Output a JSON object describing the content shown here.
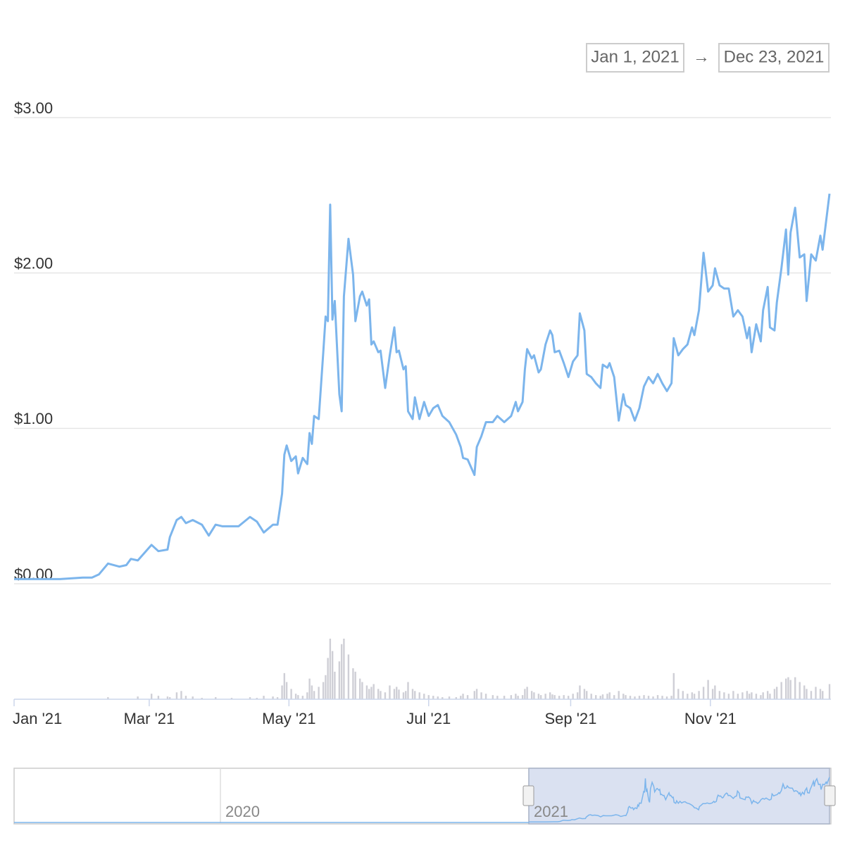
{
  "range_selector": {
    "from": "Jan 1, 2021",
    "arrow": "→",
    "to": "Dec 23, 2021"
  },
  "chart_data": {
    "type": "line",
    "color": "#7cb5ec",
    "grid": true,
    "xlim": [
      "2021-01-01",
      "2021-12-23"
    ],
    "xticks": [
      {
        "value": "2021-01-01",
        "label": "Jan '21"
      },
      {
        "value": "2021-03-01",
        "label": "Mar '21"
      },
      {
        "value": "2021-05-01",
        "label": "May '21"
      },
      {
        "value": "2021-07-01",
        "label": "Jul '21"
      },
      {
        "value": "2021-09-01",
        "label": "Sep '21"
      },
      {
        "value": "2021-11-01",
        "label": "Nov '21"
      }
    ],
    "ylim": [
      0,
      3
    ],
    "yticks": [
      {
        "value": 0,
        "label": "$0.00"
      },
      {
        "value": 1,
        "label": "$1.00"
      },
      {
        "value": 2,
        "label": "$2.00"
      },
      {
        "value": 3,
        "label": "$3.00"
      }
    ],
    "x": [
      "2021-01-01",
      "2021-01-11",
      "2021-01-21",
      "2021-01-31",
      "2021-02-04",
      "2021-02-07",
      "2021-02-11",
      "2021-02-16",
      "2021-02-19",
      "2021-02-21",
      "2021-02-24",
      "2021-02-27",
      "2021-03-02",
      "2021-03-05",
      "2021-03-09",
      "2021-03-10",
      "2021-03-13",
      "2021-03-15",
      "2021-03-17",
      "2021-03-20",
      "2021-03-24",
      "2021-03-27",
      "2021-03-30",
      "2021-04-02",
      "2021-04-06",
      "2021-04-09",
      "2021-04-14",
      "2021-04-17",
      "2021-04-20",
      "2021-04-24",
      "2021-04-26",
      "2021-04-28",
      "2021-04-29",
      "2021-04-30",
      "2021-05-02",
      "2021-05-04",
      "2021-05-05",
      "2021-05-07",
      "2021-05-09",
      "2021-05-10",
      "2021-05-11",
      "2021-05-12",
      "2021-05-14",
      "2021-05-16",
      "2021-05-17",
      "2021-05-18",
      "2021-05-19",
      "2021-05-20",
      "2021-05-21",
      "2021-05-23",
      "2021-05-24",
      "2021-05-25",
      "2021-05-27",
      "2021-05-29",
      "2021-05-30",
      "2021-06-01",
      "2021-06-02",
      "2021-06-04",
      "2021-06-05",
      "2021-06-06",
      "2021-06-07",
      "2021-06-09",
      "2021-06-10",
      "2021-06-12",
      "2021-06-14",
      "2021-06-16",
      "2021-06-17",
      "2021-06-18",
      "2021-06-20",
      "2021-06-21",
      "2021-06-22",
      "2021-06-24",
      "2021-06-25",
      "2021-06-27",
      "2021-06-29",
      "2021-07-01",
      "2021-07-03",
      "2021-07-05",
      "2021-07-07",
      "2021-07-10",
      "2021-07-13",
      "2021-07-15",
      "2021-07-16",
      "2021-07-18",
      "2021-07-21",
      "2021-07-22",
      "2021-07-24",
      "2021-07-26",
      "2021-07-29",
      "2021-07-31",
      "2021-08-03",
      "2021-08-06",
      "2021-08-08",
      "2021-08-09",
      "2021-08-11",
      "2021-08-12",
      "2021-08-13",
      "2021-08-15",
      "2021-08-16",
      "2021-08-18",
      "2021-08-19",
      "2021-08-21",
      "2021-08-23",
      "2021-08-24",
      "2021-08-25",
      "2021-08-27",
      "2021-08-29",
      "2021-08-31",
      "2021-09-02",
      "2021-09-04",
      "2021-09-05",
      "2021-09-07",
      "2021-09-08",
      "2021-09-10",
      "2021-09-12",
      "2021-09-14",
      "2021-09-15",
      "2021-09-17",
      "2021-09-18",
      "2021-09-20",
      "2021-09-22",
      "2021-09-24",
      "2021-09-25",
      "2021-09-27",
      "2021-09-29",
      "2021-10-01",
      "2021-10-03",
      "2021-10-05",
      "2021-10-07",
      "2021-10-09",
      "2021-10-11",
      "2021-10-13",
      "2021-10-15",
      "2021-10-16",
      "2021-10-18",
      "2021-10-20",
      "2021-10-22",
      "2021-10-24",
      "2021-10-25",
      "2021-10-27",
      "2021-10-29",
      "2021-10-31",
      "2021-11-02",
      "2021-11-03",
      "2021-11-05",
      "2021-11-07",
      "2021-11-09",
      "2021-11-11",
      "2021-11-13",
      "2021-11-15",
      "2021-11-17",
      "2021-11-18",
      "2021-11-19",
      "2021-11-21",
      "2021-11-23",
      "2021-11-24",
      "2021-11-26",
      "2021-11-27",
      "2021-11-29",
      "2021-11-30",
      "2021-12-02",
      "2021-12-04",
      "2021-12-05",
      "2021-12-06",
      "2021-12-08",
      "2021-12-10",
      "2021-12-12",
      "2021-12-13",
      "2021-12-15",
      "2021-12-17",
      "2021-12-19",
      "2021-12-20",
      "2021-12-23"
    ],
    "values": [
      0.03,
      0.03,
      0.03,
      0.04,
      0.04,
      0.06,
      0.13,
      0.11,
      0.12,
      0.16,
      0.15,
      0.2,
      0.25,
      0.21,
      0.22,
      0.3,
      0.41,
      0.43,
      0.39,
      0.41,
      0.38,
      0.31,
      0.38,
      0.37,
      0.37,
      0.37,
      0.43,
      0.4,
      0.33,
      0.38,
      0.38,
      0.58,
      0.83,
      0.89,
      0.79,
      0.82,
      0.71,
      0.81,
      0.77,
      0.97,
      0.9,
      1.08,
      1.06,
      1.49,
      1.72,
      1.69,
      2.44,
      1.7,
      1.82,
      1.22,
      1.11,
      1.85,
      2.22,
      1.99,
      1.69,
      1.85,
      1.88,
      1.79,
      1.83,
      1.54,
      1.56,
      1.49,
      1.5,
      1.26,
      1.47,
      1.65,
      1.49,
      1.5,
      1.38,
      1.4,
      1.11,
      1.06,
      1.2,
      1.06,
      1.17,
      1.08,
      1.13,
      1.15,
      1.08,
      1.04,
      0.96,
      0.88,
      0.81,
      0.8,
      0.7,
      0.88,
      0.95,
      1.04,
      1.04,
      1.08,
      1.04,
      1.08,
      1.17,
      1.11,
      1.17,
      1.38,
      1.51,
      1.45,
      1.47,
      1.36,
      1.38,
      1.54,
      1.63,
      1.6,
      1.49,
      1.5,
      1.42,
      1.33,
      1.43,
      1.47,
      1.74,
      1.63,
      1.35,
      1.33,
      1.29,
      1.26,
      1.41,
      1.39,
      1.42,
      1.33,
      1.05,
      1.22,
      1.15,
      1.13,
      1.05,
      1.13,
      1.27,
      1.33,
      1.29,
      1.35,
      1.29,
      1.24,
      1.29,
      1.58,
      1.47,
      1.51,
      1.54,
      1.65,
      1.6,
      1.76,
      2.13,
      1.88,
      1.92,
      2.03,
      1.92,
      1.9,
      1.9,
      1.72,
      1.76,
      1.72,
      1.58,
      1.65,
      1.49,
      1.67,
      1.56,
      1.76,
      1.91,
      1.65,
      1.63,
      1.81,
      2.03,
      2.28,
      1.99,
      2.26,
      2.42,
      2.1,
      2.12,
      1.82,
      2.12,
      2.08,
      2.24,
      2.15,
      2.51
    ],
    "volume": {
      "color": "#cfcfd6",
      "ylim": [
        0,
        90
      ],
      "values": [
        0,
        0,
        0,
        0,
        0,
        0,
        3,
        0,
        0,
        0,
        4,
        0,
        8,
        5,
        4,
        3,
        10,
        12,
        5,
        4,
        2,
        0,
        3,
        0,
        2,
        0,
        3,
        2,
        5,
        4,
        3,
        20,
        38,
        25,
        15,
        8,
        6,
        5,
        10,
        30,
        20,
        12,
        18,
        25,
        35,
        60,
        88,
        70,
        40,
        55,
        80,
        88,
        65,
        45,
        40,
        30,
        25,
        20,
        15,
        18,
        22,
        15,
        12,
        10,
        20,
        15,
        18,
        14,
        10,
        12,
        25,
        15,
        12,
        10,
        8,
        6,
        5,
        4,
        3,
        4,
        3,
        5,
        8,
        6,
        12,
        15,
        10,
        8,
        6,
        5,
        5,
        6,
        8,
        5,
        6,
        15,
        18,
        12,
        10,
        8,
        6,
        8,
        10,
        7,
        6,
        5,
        6,
        5,
        8,
        10,
        20,
        15,
        12,
        8,
        6,
        5,
        7,
        8,
        10,
        6,
        12,
        8,
        6,
        5,
        4,
        5,
        6,
        5,
        4,
        6,
        5,
        4,
        5,
        38,
        15,
        12,
        8,
        10,
        8,
        12,
        18,
        28,
        15,
        20,
        12,
        10,
        8,
        12,
        8,
        10,
        12,
        8,
        10,
        8,
        6,
        10,
        12,
        8,
        15,
        18,
        25,
        30,
        32,
        28,
        32,
        25,
        20,
        15,
        12,
        18,
        15,
        12,
        22
      ]
    },
    "navigator": {
      "labels": [
        "2020",
        "2021"
      ]
    }
  }
}
